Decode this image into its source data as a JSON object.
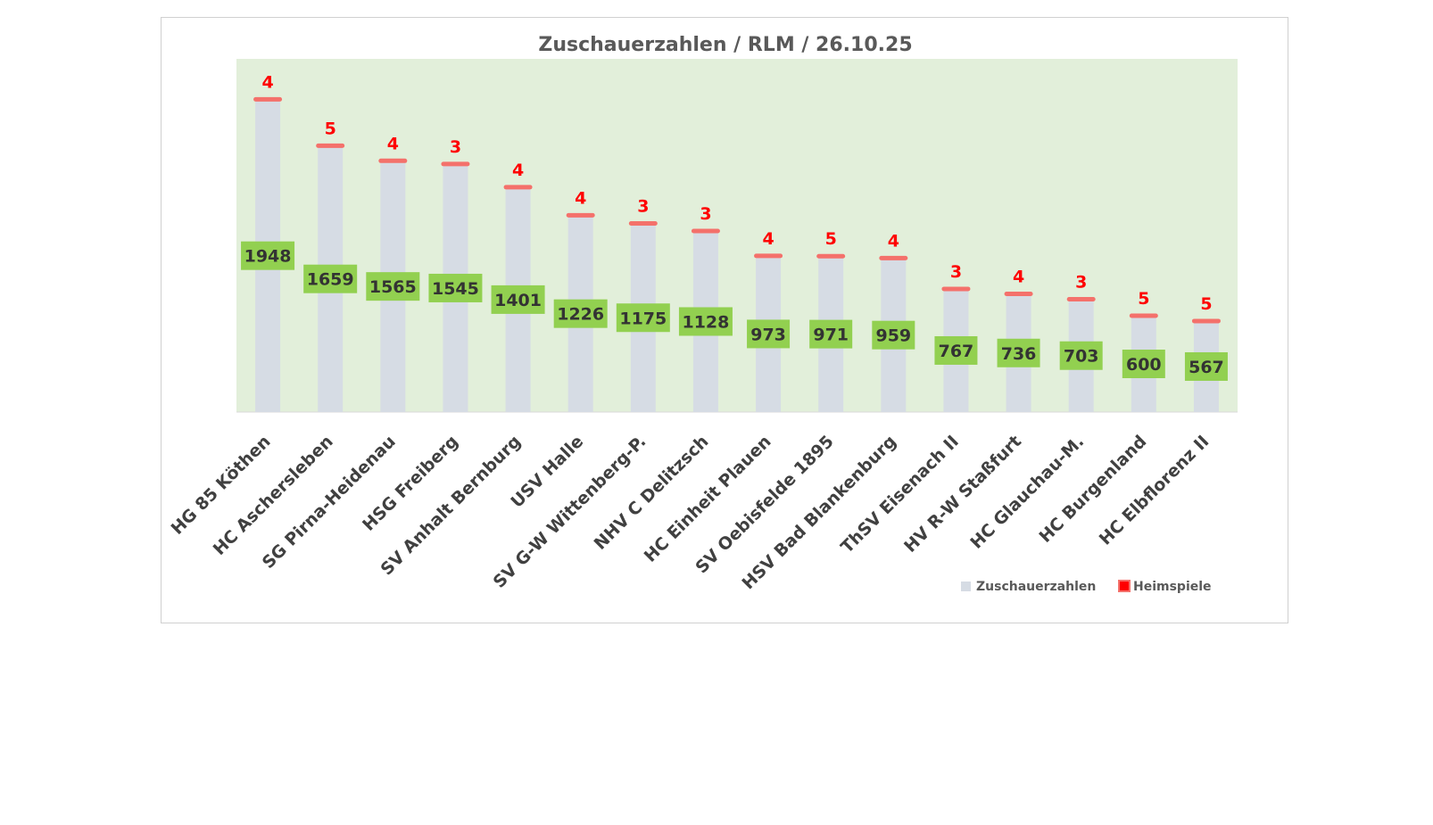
{
  "chart_data": {
    "type": "bar",
    "title": "Zuschauerzahlen / RLM / 26.10.25",
    "xlabel": "",
    "ylabel": "",
    "ylim": [
      0,
      2200
    ],
    "grid": false,
    "legend_position": "bottom-right",
    "categories": [
      "HG 85 Köthen",
      "HC Aschersleben",
      "SG Pirna-Heidenau",
      "HSG Freiberg",
      "SV Anhalt Bernburg",
      "USV Halle",
      "SV G-W Wittenberg-P.",
      "NHV C Delitzsch",
      "HC Einheit Plauen",
      "SV Oebisfelde 1895",
      "HSV Bad Blankenburg",
      "ThSV Eisenach II",
      "HV R-W Staßfurt",
      "HC Glauchau-M.",
      "HC Burgenland",
      "HC Elbflorenz II"
    ],
    "series": [
      {
        "name": "Zuschauerzahlen",
        "type": "bar",
        "values": [
          1948,
          1659,
          1565,
          1545,
          1401,
          1226,
          1175,
          1128,
          973,
          971,
          959,
          767,
          736,
          703,
          600,
          567
        ]
      },
      {
        "name": "Heimspiele",
        "type": "marker",
        "values": [
          4,
          5,
          4,
          3,
          4,
          4,
          3,
          3,
          4,
          5,
          4,
          3,
          4,
          3,
          5,
          5
        ]
      }
    ],
    "colors": {
      "plot_background": "#e2efda",
      "bar": "#d6dce4",
      "value_label_box": "#92d050",
      "marker": "#f4716b",
      "marker_label": "#ff0000"
    }
  }
}
